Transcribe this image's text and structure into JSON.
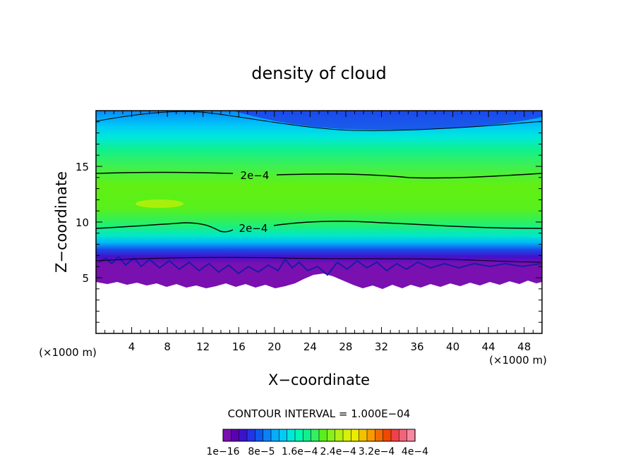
{
  "chart_data": {
    "type": "heatmap",
    "title": "density of cloud",
    "xlabel": "X−coordinate",
    "ylabel": "Z−coordinate",
    "x_unit": "(×1000 m)",
    "y_unit": "(×1000 m)",
    "xlim": [
      0,
      50
    ],
    "ylim": [
      0,
      20
    ],
    "x_ticks": [
      4,
      8,
      12,
      16,
      20,
      24,
      28,
      32,
      36,
      40,
      44,
      48
    ],
    "y_ticks": [
      5,
      10,
      15
    ],
    "contour_labels": [
      {
        "text": "2e−4",
        "x": 16,
        "z": 14.2
      },
      {
        "text": "2e−4",
        "x": 15.8,
        "z": 9.5
      }
    ],
    "contour_interval_text": "CONTOUR INTERVAL = 1.000E−04",
    "colorbar_labels": [
      "1e−16",
      "8e−5",
      "1.6e−4",
      "2.4e−4",
      "3.2e−4",
      "4e−4"
    ],
    "colorbar_colors": [
      "#7a10b0",
      "#5a00b4",
      "#3a14cc",
      "#2234e6",
      "#0e58f0",
      "#0a82f4",
      "#08acfa",
      "#00ccf6",
      "#00e8da",
      "#00f8b0",
      "#12f08a",
      "#34f060",
      "#58f01c",
      "#8af01c",
      "#b4f014",
      "#d8f00a",
      "#ecec00",
      "#f4c000",
      "#f89a00",
      "#f46c00",
      "#f04800",
      "#f0404a",
      "#f0647a",
      "#f888a0"
    ]
  }
}
